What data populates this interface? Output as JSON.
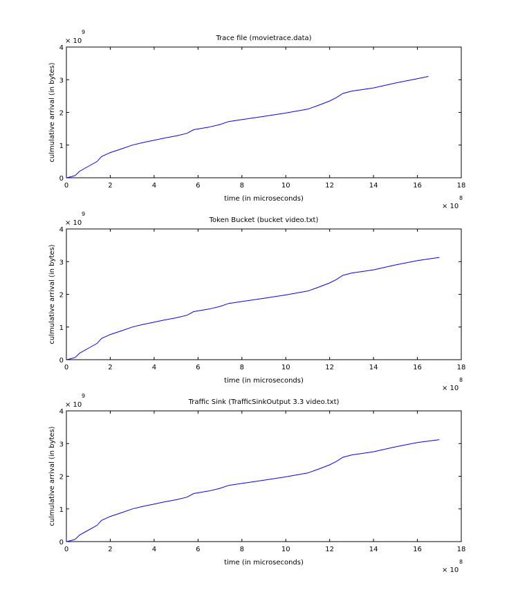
{
  "chart_data": [
    {
      "type": "line",
      "title": "Trace file (movietrace.data)",
      "xlabel": "time (in microseconds)",
      "ylabel": "culmulative arrival (in bytes)",
      "x_multiplier": "× 10",
      "x_exponent": "8",
      "y_multiplier": "× 10",
      "y_exponent": "9",
      "xlim": [
        0,
        18
      ],
      "ylim": [
        0,
        4
      ],
      "x_ticks": [
        "0",
        "2",
        "4",
        "6",
        "8",
        "10",
        "12",
        "14",
        "16",
        "18"
      ],
      "y_ticks": [
        "0",
        "1",
        "2",
        "3",
        "4"
      ],
      "grid": false,
      "line_color": "#0000ff",
      "series": [
        {
          "x": [
            0,
            0.2,
            0.4,
            0.6,
            1.0,
            1.4,
            1.6,
            2.0,
            2.5,
            3.0,
            3.5,
            4.0,
            4.5,
            5.0,
            5.5,
            5.8,
            6.5,
            7.0,
            7.4,
            8.0,
            9.0,
            10.0,
            11.0,
            11.5,
            12.0,
            12.3,
            12.6,
            13.0,
            14.0,
            15.0,
            16.0,
            16.5
          ],
          "y": [
            0,
            0.03,
            0.07,
            0.2,
            0.35,
            0.5,
            0.65,
            0.77,
            0.88,
            1.0,
            1.08,
            1.15,
            1.22,
            1.28,
            1.36,
            1.47,
            1.55,
            1.63,
            1.72,
            1.78,
            1.88,
            1.98,
            2.1,
            2.22,
            2.35,
            2.45,
            2.58,
            2.65,
            2.75,
            2.9,
            3.03,
            3.1
          ]
        }
      ]
    },
    {
      "type": "line",
      "title": "Token Bucket (bucket video.txt)",
      "xlabel": "time (in microseconds)",
      "ylabel": "culmulative arrival (in bytes)",
      "x_multiplier": "× 10",
      "x_exponent": "8",
      "y_multiplier": "× 10",
      "y_exponent": "9",
      "xlim": [
        0,
        18
      ],
      "ylim": [
        0,
        4
      ],
      "x_ticks": [
        "0",
        "2",
        "4",
        "6",
        "8",
        "10",
        "12",
        "14",
        "16",
        "18"
      ],
      "y_ticks": [
        "0",
        "1",
        "2",
        "3",
        "4"
      ],
      "grid": false,
      "line_color": "#0000ff",
      "series": [
        {
          "x": [
            0,
            0.2,
            0.4,
            0.6,
            1.0,
            1.4,
            1.6,
            2.0,
            2.5,
            3.0,
            3.5,
            4.0,
            4.5,
            5.0,
            5.5,
            5.8,
            6.5,
            7.0,
            7.4,
            8.0,
            9.0,
            10.0,
            11.0,
            11.5,
            12.0,
            12.3,
            12.6,
            13.0,
            14.0,
            15.0,
            16.0,
            17.0
          ],
          "y": [
            0,
            0.03,
            0.07,
            0.2,
            0.35,
            0.5,
            0.65,
            0.77,
            0.88,
            1.0,
            1.08,
            1.15,
            1.22,
            1.28,
            1.36,
            1.47,
            1.55,
            1.63,
            1.72,
            1.78,
            1.88,
            1.98,
            2.1,
            2.22,
            2.35,
            2.45,
            2.58,
            2.65,
            2.75,
            2.9,
            3.03,
            3.13
          ]
        }
      ]
    },
    {
      "type": "line",
      "title": "Traffic Sink (TrafficSinkOutput 3.3 video.txt)",
      "xlabel": "time (in microseconds)",
      "ylabel": "culmulative arrival (in bytes)",
      "x_multiplier": "× 10",
      "x_exponent": "8",
      "y_multiplier": "× 10",
      "y_exponent": "9",
      "xlim": [
        0,
        18
      ],
      "ylim": [
        0,
        4
      ],
      "x_ticks": [
        "0",
        "2",
        "4",
        "6",
        "8",
        "10",
        "12",
        "14",
        "16",
        "18"
      ],
      "y_ticks": [
        "0",
        "1",
        "2",
        "3",
        "4"
      ],
      "grid": false,
      "line_color": "#0000ff",
      "series": [
        {
          "x": [
            0,
            0.2,
            0.4,
            0.6,
            1.0,
            1.4,
            1.6,
            2.0,
            2.5,
            3.0,
            3.5,
            4.0,
            4.5,
            5.0,
            5.5,
            5.8,
            6.5,
            7.0,
            7.4,
            8.0,
            9.0,
            10.0,
            11.0,
            11.5,
            12.0,
            12.3,
            12.6,
            13.0,
            14.0,
            15.0,
            16.0,
            17.0
          ],
          "y": [
            0,
            0.03,
            0.07,
            0.2,
            0.35,
            0.5,
            0.65,
            0.77,
            0.88,
            1.0,
            1.08,
            1.15,
            1.22,
            1.28,
            1.36,
            1.47,
            1.55,
            1.63,
            1.72,
            1.78,
            1.88,
            1.98,
            2.1,
            2.22,
            2.35,
            2.45,
            2.58,
            2.65,
            2.75,
            2.9,
            3.03,
            3.12
          ]
        }
      ]
    }
  ]
}
